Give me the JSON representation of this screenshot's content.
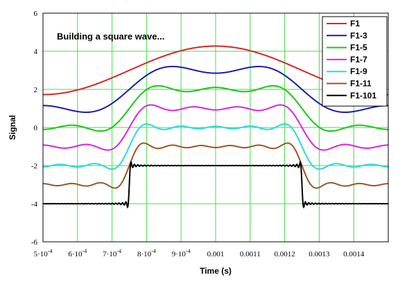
{
  "chart_data": {
    "type": "line",
    "xlabel": "Time (s)",
    "ylabel": "Signal",
    "annotation": "Building a square wave...",
    "xlim": [
      0.0005,
      0.0015
    ],
    "ylim": [
      -6,
      6
    ],
    "grid": true,
    "legend_position": "top-right",
    "x_ticks": [
      {
        "value": 0.0005,
        "mant": "5",
        "exp": "-4"
      },
      {
        "value": 0.0006,
        "mant": "6",
        "exp": "-4"
      },
      {
        "value": 0.0007,
        "mant": "7",
        "exp": "-4"
      },
      {
        "value": 0.0008,
        "mant": "8",
        "exp": "-4"
      },
      {
        "value": 0.0009,
        "mant": "9",
        "exp": "-4"
      },
      {
        "value": 0.001,
        "text": "0.001"
      },
      {
        "value": 0.0011,
        "text": "0.0011"
      },
      {
        "value": 0.0012,
        "text": "0.0012"
      },
      {
        "value": 0.0013,
        "text": "0.0013"
      },
      {
        "value": 0.0014,
        "text": "0.0014"
      }
    ],
    "y_ticks": [
      -6,
      -4,
      -2,
      0,
      2,
      4,
      6
    ],
    "series": [
      {
        "name": "F1",
        "color": "#dd2222",
        "harmonics": 1,
        "offset": 3
      },
      {
        "name": "F1-3",
        "color": "#1a1aaa",
        "harmonics": 3,
        "offset": 2
      },
      {
        "name": "F1-5",
        "color": "#11cc11",
        "harmonics": 5,
        "offset": 1
      },
      {
        "name": "F1-7",
        "color": "#dd22dd",
        "harmonics": 7,
        "offset": 0
      },
      {
        "name": "F1-9",
        "color": "#22dddd",
        "harmonics": 9,
        "offset": -1
      },
      {
        "name": "F1-11",
        "color": "#995522",
        "harmonics": 11,
        "offset": -2
      },
      {
        "name": "F1-101",
        "color": "#000000",
        "harmonics": 101,
        "offset": -3
      }
    ],
    "wave": {
      "center": 0.001,
      "period": 0.001,
      "amplitude": 1
    }
  }
}
